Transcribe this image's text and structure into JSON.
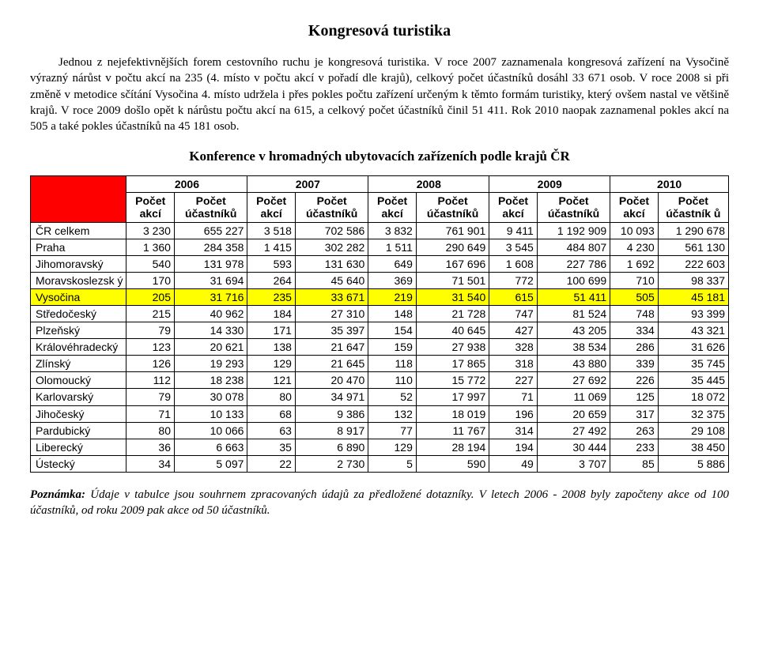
{
  "title": "Kongresová turistika",
  "paragraph": "Jednou z nejefektivnějších forem cestovního ruchu je kongresová turistika. V roce 2007 zaznamenala kongresová zařízení na Vysočině výrazný nárůst v počtu akcí na 235 (4. místo v počtu akcí v pořadí dle krajů), celkový počet účastníků dosáhl 33 671 osob. V roce 2008 si při změně v metodice sčítání Vysočina 4. místo udržela i přes pokles počtu zařízení určeným k těmto formám turistiky, který ovšem nastal ve většině krajů. V roce 2009 došlo opět k nárůstu počtu akcí na 615, a celkový počet účastníků činil 51 411. Rok 2010 naopak zaznamenal pokles akcí na 505 a také pokles účastníků na 45 181 osob.",
  "subtitle": "Konference v hromadných ubytovacích zařízeních podle krajů ČR",
  "years": [
    "2006",
    "2007",
    "2008",
    "2009",
    "2010"
  ],
  "col_akci": "Počet akcí",
  "col_ucast": "Počet účastníků",
  "col_ucast_last": "Počet účastník ů",
  "rows": [
    {
      "region": "ČR celkem",
      "v": [
        "3 230",
        "655 227",
        "3 518",
        "702 586",
        "3 832",
        "761 901",
        "9 411",
        "1 192 909",
        "10 093",
        "1 290 678"
      ],
      "cr": true
    },
    {
      "region": "Praha",
      "v": [
        "1 360",
        "284 358",
        "1 415",
        "302 282",
        "1 511",
        "290 649",
        "3 545",
        "484 807",
        "4 230",
        "561 130"
      ]
    },
    {
      "region": "Jihomoravský",
      "v": [
        "540",
        "131 978",
        "593",
        "131 630",
        "649",
        "167 696",
        "1 608",
        "227 786",
        "1 692",
        "222 603"
      ]
    },
    {
      "region": "Moravskoslezsk ý",
      "v": [
        "170",
        "31 694",
        "264",
        "45 640",
        "369",
        "71 501",
        "772",
        "100 699",
        "710",
        "98 337"
      ],
      "ms": true
    },
    {
      "region": "Vysočina",
      "v": [
        "205",
        "31 716",
        "235",
        "33 671",
        "219",
        "31 540",
        "615",
        "51 411",
        "505",
        "45 181"
      ],
      "hl": true
    },
    {
      "region": "Středočeský",
      "v": [
        "215",
        "40 962",
        "184",
        "27 310",
        "148",
        "21 728",
        "747",
        "81 524",
        "748",
        "93 399"
      ]
    },
    {
      "region": "Plzeňský",
      "v": [
        "79",
        "14 330",
        "171",
        "35 397",
        "154",
        "40 645",
        "427",
        "43 205",
        "334",
        "43 321"
      ]
    },
    {
      "region": "Královéhradecký",
      "v": [
        "123",
        "20 621",
        "138",
        "21 647",
        "159",
        "27 938",
        "328",
        "38 534",
        "286",
        "31 626"
      ]
    },
    {
      "region": "Zlínský",
      "v": [
        "126",
        "19 293",
        "129",
        "21 645",
        "118",
        "17 865",
        "318",
        "43 880",
        "339",
        "35 745"
      ]
    },
    {
      "region": "Olomoucký",
      "v": [
        "112",
        "18 238",
        "121",
        "20 470",
        "110",
        "15 772",
        "227",
        "27 692",
        "226",
        "35 445"
      ]
    },
    {
      "region": "Karlovarský",
      "v": [
        "79",
        "30 078",
        "80",
        "34 971",
        "52",
        "17 997",
        "71",
        "11 069",
        "125",
        "18 072"
      ]
    },
    {
      "region": "Jihočeský",
      "v": [
        "71",
        "10 133",
        "68",
        "9 386",
        "132",
        "18 019",
        "196",
        "20 659",
        "317",
        "32 375"
      ]
    },
    {
      "region": "Pardubický",
      "v": [
        "80",
        "10 066",
        "63",
        "8 917",
        "77",
        "11 767",
        "314",
        "27 492",
        "263",
        "29 108"
      ]
    },
    {
      "region": "Liberecký",
      "v": [
        "36",
        "6 663",
        "35",
        "6 890",
        "129",
        "28 194",
        "194",
        "30 444",
        "233",
        "38 450"
      ]
    },
    {
      "region": "Ústecký",
      "v": [
        "34",
        "5 097",
        "22",
        "2 730",
        "5",
        "590",
        "49",
        "3 707",
        "85",
        "5 886"
      ]
    }
  ],
  "note_lead": "Poznámka:",
  "note_body": " Údaje v tabulce jsou souhrnem zpracovaných údajů za předložené dotazníky. V letech 2006 - 2008 byly započteny akce od 100 účastníků, od roku 2009 pak akce od 50 účastníků."
}
